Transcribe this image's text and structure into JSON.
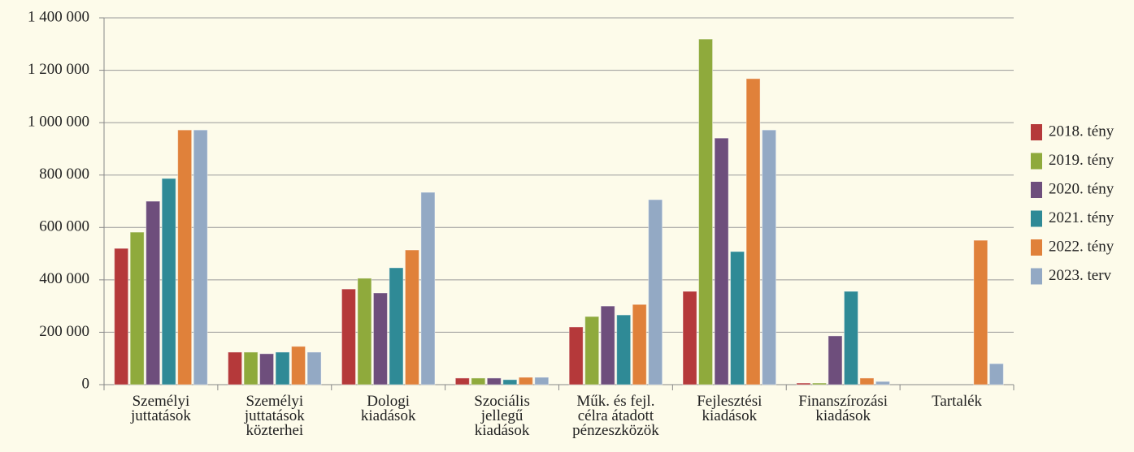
{
  "chart_data": {
    "type": "bar",
    "categories": [
      "Személyi\njuttatások",
      "Személyi\njuttatások\nközterhei",
      "Dologi\nkiadások",
      "Szociális\njellegű\nkiadások",
      "Műk. és fejl.\ncélra átadott\npénzeszközök",
      "Fejlesztési\nkiadások",
      "Finanszírozási\nkiadások",
      "Tartalék"
    ],
    "series": [
      {
        "name": "2018. tény",
        "color": "#b5393a",
        "values": [
          520000,
          124000,
          365000,
          25000,
          220000,
          356000,
          6000,
          0
        ]
      },
      {
        "name": "2019. tény",
        "color": "#8faa3c",
        "values": [
          582000,
          124000,
          406000,
          25000,
          260000,
          1319000,
          6000,
          0
        ]
      },
      {
        "name": "2020. tény",
        "color": "#6e4e7c",
        "values": [
          700000,
          118000,
          350000,
          25000,
          300000,
          941000,
          186000,
          0
        ]
      },
      {
        "name": "2021. tény",
        "color": "#2f8a96",
        "values": [
          787000,
          124000,
          446000,
          19000,
          266000,
          508000,
          356000,
          0
        ]
      },
      {
        "name": "2022. tény",
        "color": "#e0813a",
        "values": [
          972000,
          146000,
          514000,
          28000,
          306000,
          1168000,
          25000,
          551000
        ]
      },
      {
        "name": "2023. terv",
        "color": "#93a9c4",
        "values": [
          972000,
          124000,
          734000,
          28000,
          706000,
          972000,
          12000,
          80000
        ]
      }
    ],
    "ylim": [
      0,
      1400000
    ],
    "yticks": [
      0,
      {
        "value": 200000,
        "label": "200 000"
      },
      {
        "value": 400000,
        "label": "400 000"
      },
      {
        "value": 600000,
        "label": "600 000"
      },
      {
        "value": 800000,
        "label": "800 000"
      },
      {
        "value": 1000000,
        "label": "1 000 000"
      },
      {
        "value": 1200000,
        "label": "1 200 000"
      },
      {
        "value": 1400000,
        "label": "1 400 000"
      }
    ],
    "grid": true,
    "legend": "right"
  }
}
